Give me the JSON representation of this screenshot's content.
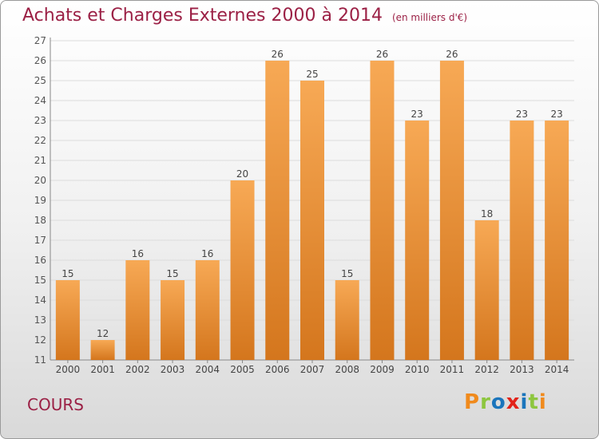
{
  "header": {
    "title": "Achats et Charges Externes 2000 à 2014",
    "unit": "(en milliers d'€)"
  },
  "footer": {
    "place": "COURS",
    "brand": "Proxiti"
  },
  "colors": {
    "title": "#9b2045",
    "bar_light": "#f7a955",
    "bar_dark": "#d4761d",
    "logo_letters": [
      "#f08a1c",
      "#8dc63f",
      "#1b75bc",
      "#e2231a",
      "#1b75bc",
      "#8dc63f",
      "#f08a1c"
    ]
  },
  "chart_data": {
    "type": "bar",
    "title": "Achats et Charges Externes 2000 à 2014",
    "categories": [
      "2000",
      "2001",
      "2002",
      "2003",
      "2004",
      "2005",
      "2006",
      "2007",
      "2008",
      "2009",
      "2010",
      "2011",
      "2012",
      "2013",
      "2014"
    ],
    "values": [
      15,
      12,
      16,
      15,
      16,
      20,
      26,
      25,
      15,
      26,
      23,
      26,
      18,
      23,
      23
    ],
    "ylim": [
      11,
      27
    ],
    "yticks": [
      11,
      12,
      13,
      14,
      15,
      16,
      17,
      18,
      19,
      20,
      21,
      22,
      23,
      24,
      25,
      26,
      27
    ],
    "grid": true,
    "legend": "none",
    "xlabel": "",
    "ylabel": ""
  }
}
